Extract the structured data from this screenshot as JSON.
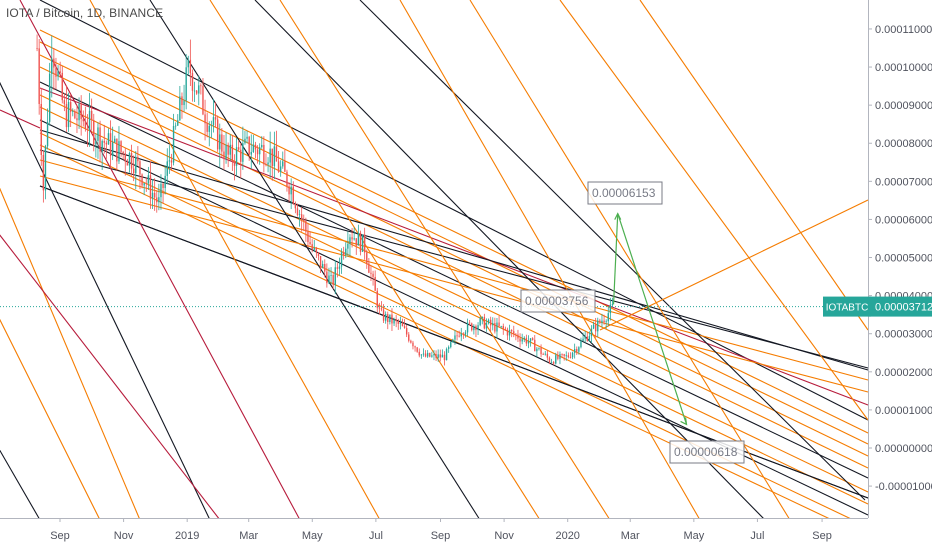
{
  "header": {
    "symbol_title": "IOTA / Bitcoin, 1D, BINANCE"
  },
  "colors": {
    "orange": "#f57c00",
    "crimson": "#b71c3c",
    "black": "#131722",
    "green": "#4caf50",
    "cyan_price": "#26a69a",
    "candle_up": "#26a69a",
    "candle_down": "#ef5350"
  },
  "chart_data": {
    "type": "candlestick",
    "title": "IOTA / Bitcoin, 1D, BINANCE",
    "x_tick_labels": [
      "Sep",
      "Nov",
      "2019",
      "Mar",
      "May",
      "Jul",
      "Sep",
      "Nov",
      "2020",
      "Mar",
      "May",
      "Jul",
      "Sep"
    ],
    "x_tick_dates": [
      "2018-09-01",
      "2018-11-01",
      "2019-01-01",
      "2019-03-01",
      "2019-05-01",
      "2019-07-01",
      "2019-09-01",
      "2019-11-01",
      "2020-01-01",
      "2020-03-01",
      "2020-05-01",
      "2020-07-01",
      "2020-09-01"
    ],
    "y_tick_labels": [
      "0.00011000",
      "0.00010000",
      "0.00009000",
      "0.00008000",
      "0.00007000",
      "0.00006000",
      "0.00005000",
      "0.00004000",
      "0.00003000",
      "0.00002000",
      "0.00001000",
      "0.00000000",
      "-0.00001000"
    ],
    "y_ticks": [
      0.00011,
      0.0001,
      9e-05,
      8e-05,
      7e-05,
      6e-05,
      5e-05,
      4e-05,
      3e-05,
      2e-05,
      1e-05,
      0,
      -1e-05
    ],
    "ylim": [
      -1.6e-05,
      0.000116
    ],
    "price_path": [
      {
        "date": "2018-08-10",
        "price": 0.000105
      },
      {
        "date": "2018-08-16",
        "price": 6.8e-05
      },
      {
        "date": "2018-08-24",
        "price": 0.000107
      },
      {
        "date": "2018-09-05",
        "price": 8.8e-05
      },
      {
        "date": "2018-09-25",
        "price": 8.6e-05
      },
      {
        "date": "2018-10-15",
        "price": 8e-05
      },
      {
        "date": "2018-11-10",
        "price": 7.6e-05
      },
      {
        "date": "2018-12-05",
        "price": 6.4e-05
      },
      {
        "date": "2018-12-20",
        "price": 8.2e-05
      },
      {
        "date": "2019-01-03",
        "price": 0.0001
      },
      {
        "date": "2019-01-20",
        "price": 8.7e-05
      },
      {
        "date": "2019-02-10",
        "price": 7.6e-05
      },
      {
        "date": "2019-03-01",
        "price": 7.9e-05
      },
      {
        "date": "2019-03-20",
        "price": 7.8e-05
      },
      {
        "date": "2019-04-10",
        "price": 6.9e-05
      },
      {
        "date": "2019-05-01",
        "price": 5.2e-05
      },
      {
        "date": "2019-05-20",
        "price": 4.3e-05
      },
      {
        "date": "2019-06-05",
        "price": 5.7e-05
      },
      {
        "date": "2019-06-20",
        "price": 5.3e-05
      },
      {
        "date": "2019-07-05",
        "price": 3.5e-05
      },
      {
        "date": "2019-07-25",
        "price": 3.2e-05
      },
      {
        "date": "2019-08-15",
        "price": 2.4e-05
      },
      {
        "date": "2019-09-05",
        "price": 2.4e-05
      },
      {
        "date": "2019-09-20",
        "price": 3.1e-05
      },
      {
        "date": "2019-10-10",
        "price": 3.3e-05
      },
      {
        "date": "2019-11-01",
        "price": 3.1e-05
      },
      {
        "date": "2019-11-25",
        "price": 2.8e-05
      },
      {
        "date": "2019-12-15",
        "price": 2.3e-05
      },
      {
        "date": "2020-01-01",
        "price": 2.4e-05
      },
      {
        "date": "2020-01-25",
        "price": 3.1e-05
      },
      {
        "date": "2020-02-14",
        "price": 3.7e-05
      }
    ],
    "current_price": {
      "symbol": "IOTABTC",
      "value_label": "0.00003712",
      "value": 3.712e-05
    },
    "annotations": [
      {
        "label": "0.00006153",
        "value": 6.153e-05
      },
      {
        "label": "0.00003756",
        "value": 3.756e-05
      },
      {
        "label": "0.00000618",
        "value": 6.18e-06
      }
    ],
    "projection": [
      {
        "date": "2020-02-14",
        "price": 3.77e-05
      },
      {
        "date": "2020-02-18",
        "price": 6.153e-05
      },
      {
        "date": "2020-04-24",
        "price": 6.18e-06
      }
    ],
    "grid": false,
    "legend": "none",
    "overlay": "pitchfork channel lines (black, orange, crimson)"
  }
}
